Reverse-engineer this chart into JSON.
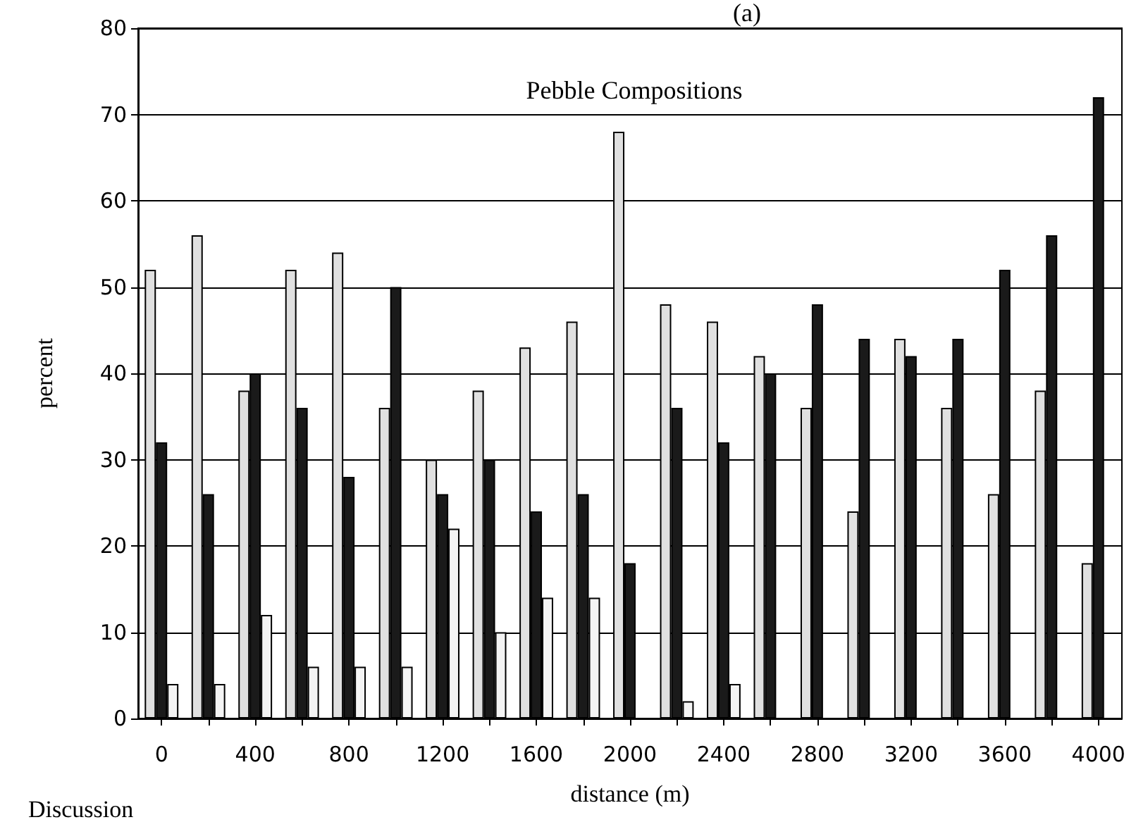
{
  "chart_data": {
    "type": "bar",
    "title": "Pebble Compositions",
    "xlabel": "distance (m)",
    "ylabel": "percent",
    "annotations": [
      "(a)",
      "Discussion"
    ],
    "categories": [
      "0",
      null,
      "400",
      null,
      "800",
      null,
      "1200",
      null,
      "1600",
      null,
      "2000",
      null,
      "2400",
      null,
      "2800",
      null,
      "3200",
      null,
      "3600",
      null,
      "4000"
    ],
    "series": [
      {
        "color": "#e0e0e0",
        "values": [
          52,
          56,
          38,
          52,
          54,
          36,
          30,
          38,
          43,
          46,
          68,
          48,
          46,
          42,
          36,
          24,
          44,
          36,
          26,
          38,
          18
        ]
      },
      {
        "color": "#1a1a1a",
        "values": [
          32,
          26,
          40,
          36,
          28,
          50,
          26,
          30,
          24,
          26,
          18,
          36,
          32,
          40,
          48,
          44,
          42,
          44,
          52,
          56,
          72
        ]
      },
      {
        "color": "#f4f4f4",
        "values": [
          4,
          4,
          12,
          6,
          6,
          6,
          22,
          10,
          14,
          14,
          null,
          2,
          4,
          null,
          null,
          null,
          null,
          null,
          null,
          null,
          null
        ]
      }
    ],
    "ylim": [
      0,
      80
    ],
    "yticks": [
      0,
      10,
      20,
      30,
      40,
      50,
      60,
      70,
      80
    ],
    "grid": "y"
  }
}
